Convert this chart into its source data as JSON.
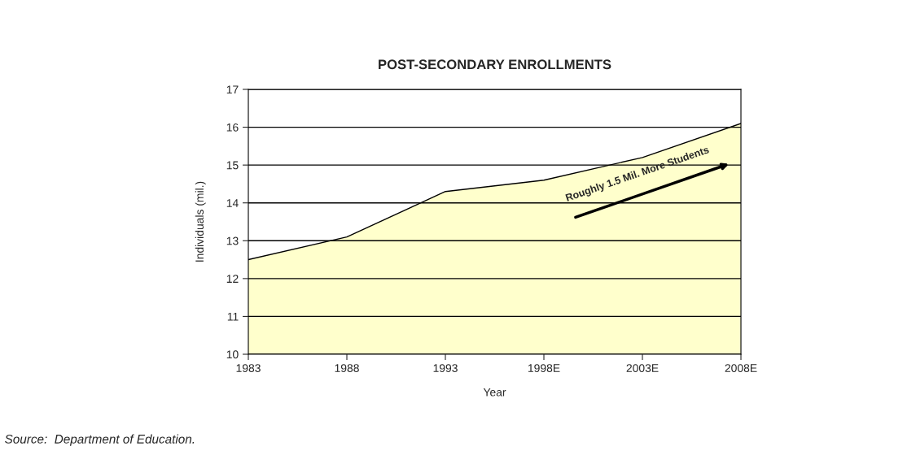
{
  "chart_data": {
    "type": "area",
    "title": "POST-SECONDARY ENROLLMENTS",
    "xlabel": "Year",
    "ylabel": "Individuals (mil.)",
    "categories": [
      "1983",
      "1988",
      "1993",
      "1998E",
      "2003E",
      "2008E"
    ],
    "series": [
      {
        "color": "#ffffcc",
        "values": [
          12.5,
          13.1,
          14.3,
          14.6,
          15.2,
          16.1
        ]
      }
    ],
    "ylim": [
      10,
      17
    ],
    "yticks": [
      10,
      11,
      12,
      13,
      14,
      15,
      16,
      17
    ],
    "grid": "y",
    "annotations": [
      "Roughly 1.5 Mil. More Students",
      "Source:  Department of Education."
    ]
  }
}
